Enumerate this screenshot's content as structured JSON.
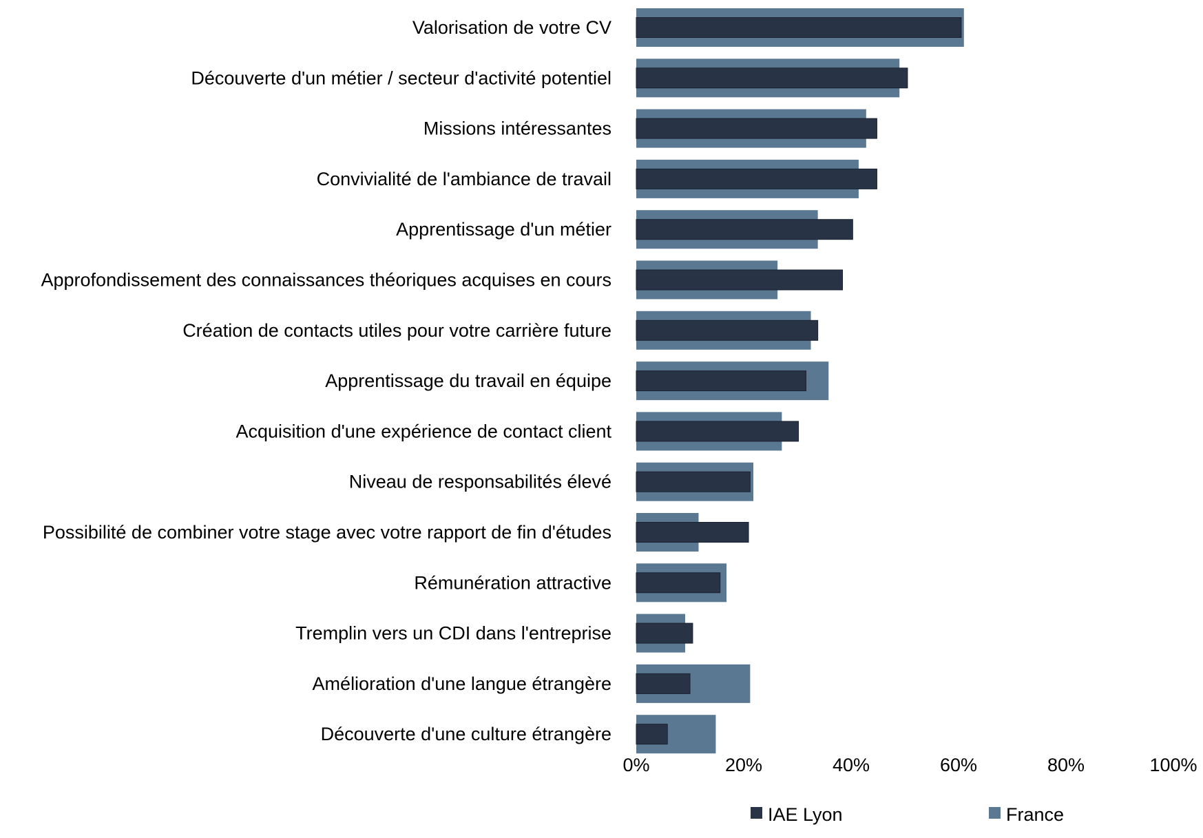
{
  "chart_data": {
    "type": "bar",
    "orientation": "horizontal",
    "categories": [
      "Valorisation de votre CV",
      "Découverte d'un métier / secteur d'activité potentiel",
      "Missions intéressantes",
      "Convivialité de l'ambiance de travail",
      "Apprentissage d'un métier",
      "Approfondissement des connaissances théoriques acquises en cours",
      "Création de contacts utiles pour votre carrière future",
      "Apprentissage du travail en équipe",
      "Acquisition d'une expérience de contact client",
      "Niveau de responsabilités élevé",
      "Possibilité de combiner votre stage avec votre rapport de fin d'études",
      "Rémunération attractive",
      "Tremplin vers un CDI dans l'entreprise",
      "Amélioration d'une langue étrangère",
      "Découverte d'une culture étrangère"
    ],
    "series": [
      {
        "name": "IAE Lyon",
        "color": "#283345",
        "values": [
          60.5,
          50.5,
          44.8,
          44.8,
          40.3,
          38.4,
          33.8,
          31.6,
          30.2,
          21.2,
          20.9,
          15.6,
          10.5,
          10.0,
          5.8
        ]
      },
      {
        "name": "France",
        "color": "#5a7891",
        "values": [
          61.0,
          49.0,
          42.8,
          41.4,
          33.8,
          26.3,
          32.5,
          35.8,
          27.1,
          21.8,
          11.6,
          16.8,
          9.1,
          21.2,
          14.8
        ]
      }
    ],
    "xlim": [
      0,
      100
    ],
    "xticks": [
      "0%",
      "20%",
      "40%",
      "60%",
      "80%",
      "100%"
    ],
    "grid": false,
    "legend_position": "bottom"
  }
}
